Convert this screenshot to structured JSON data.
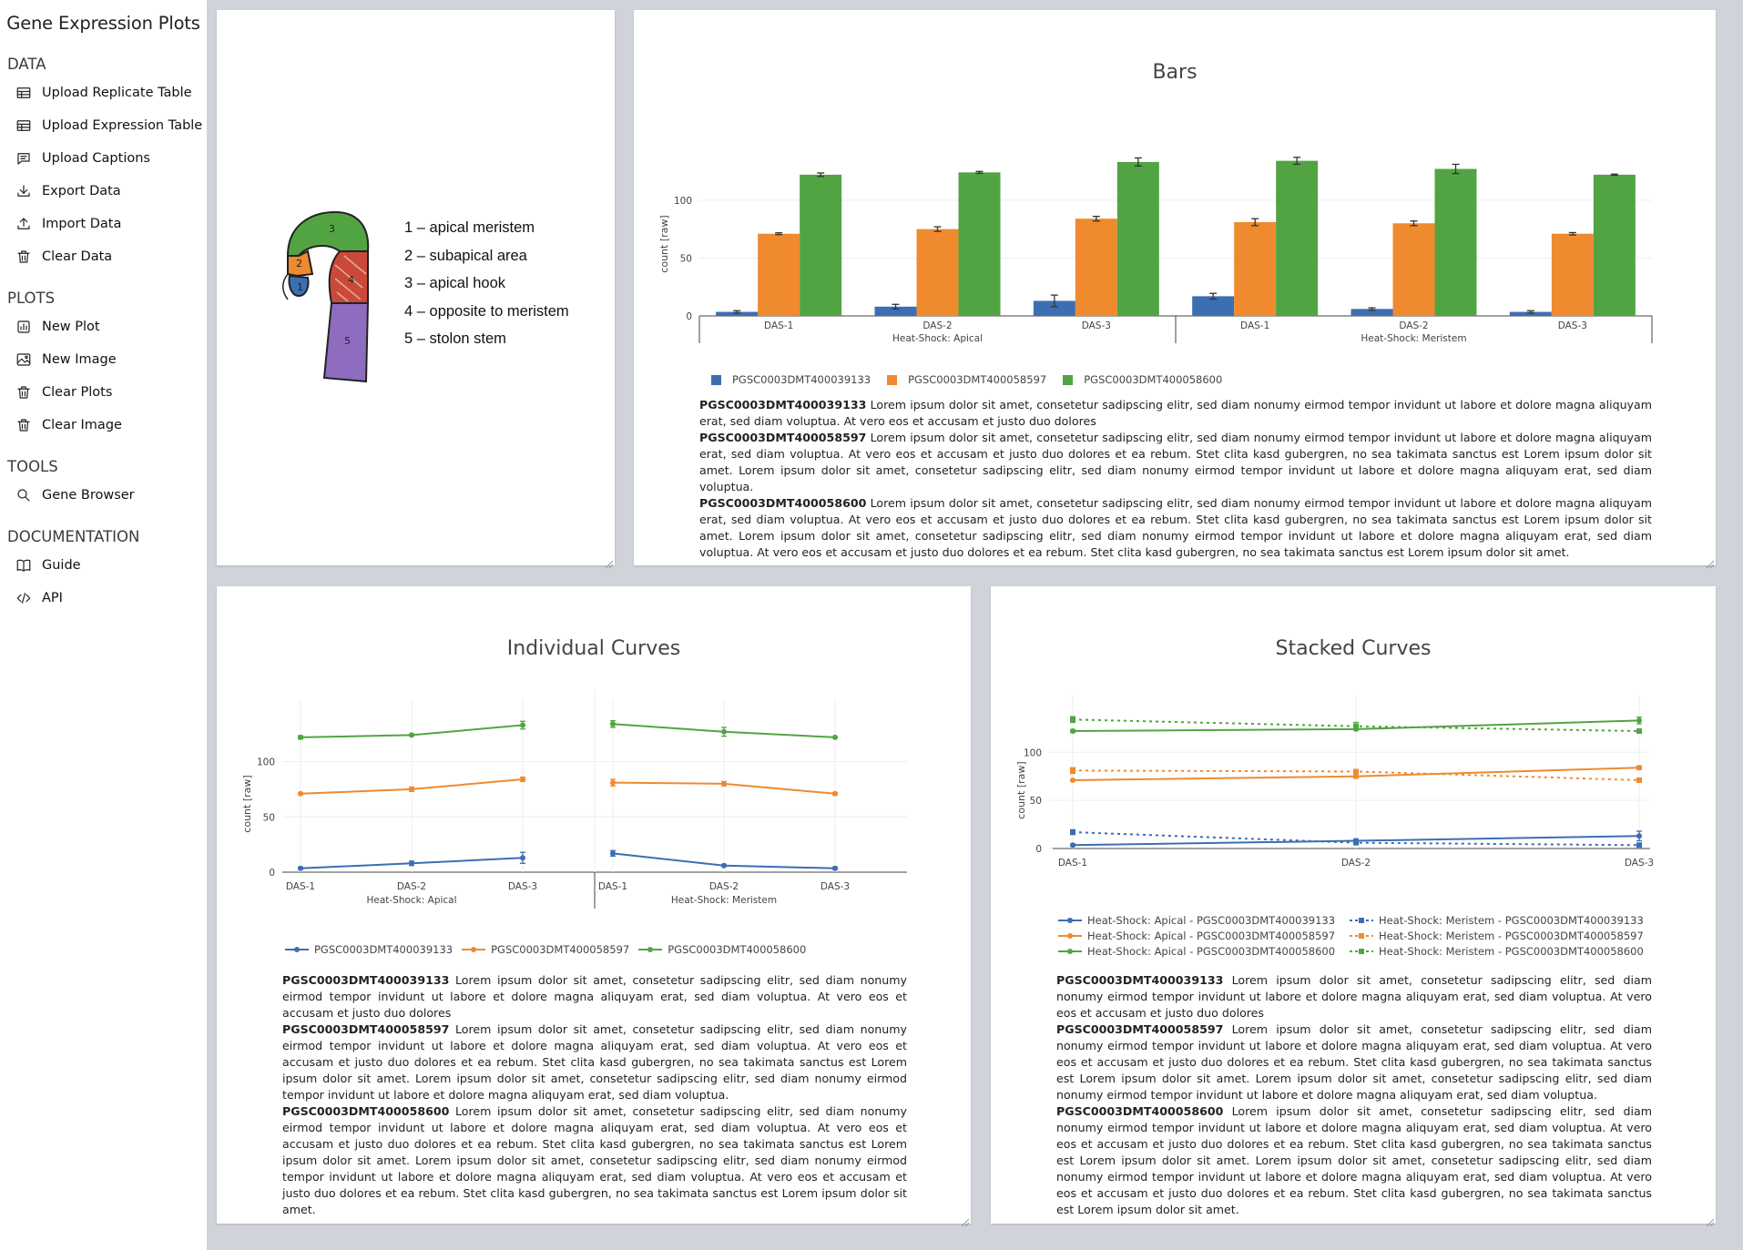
{
  "app": {
    "title": "Gene Expression Plots"
  },
  "sidebar": {
    "sections": [
      {
        "title": "DATA",
        "items": [
          {
            "label": "Upload Replicate Table",
            "icon": "table-icon"
          },
          {
            "label": "Upload Expression Table",
            "icon": "table-icon"
          },
          {
            "label": "Upload Captions",
            "icon": "comment-icon"
          },
          {
            "label": "Export Data",
            "icon": "download-icon"
          },
          {
            "label": "Import Data",
            "icon": "upload-icon"
          },
          {
            "label": "Clear Data",
            "icon": "trash-icon"
          }
        ]
      },
      {
        "title": "PLOTS",
        "items": [
          {
            "label": "New Plot",
            "icon": "bar-chart-icon"
          },
          {
            "label": "New Image",
            "icon": "image-icon"
          },
          {
            "label": "Clear Plots",
            "icon": "trash-icon"
          },
          {
            "label": "Clear Image",
            "icon": "trash-icon"
          }
        ]
      },
      {
        "title": "TOOLS",
        "items": [
          {
            "label": "Gene Browser",
            "icon": "search-icon"
          }
        ]
      },
      {
        "title": "DOCUMENTATION",
        "items": [
          {
            "label": "Guide",
            "icon": "book-icon"
          },
          {
            "label": "API",
            "icon": "code-icon"
          }
        ]
      }
    ]
  },
  "image_panel": {
    "regions": [
      "1 – apical meristem",
      "2 – subapical area",
      "3 – apical hook",
      "4 – opposite to meristem",
      "5 – stolon stem"
    ],
    "region_numbers": [
      "1",
      "2",
      "3",
      "4",
      "5"
    ]
  },
  "colors": {
    "blue": "#3c6eb4",
    "orange": "#ef8a2f",
    "green": "#52a443"
  },
  "genes": [
    "PGSC0003DMT400039133",
    "PGSC0003DMT400058597",
    "PGSC0003DMT400058600"
  ],
  "captions": [
    {
      "gene": "PGSC0003DMT400039133",
      "text": "Lorem ipsum dolor sit amet, consetetur sadipscing elitr, sed diam nonumy eirmod tempor invidunt ut labore et dolore magna aliquyam erat, sed diam voluptua. At vero eos et accusam et justo duo dolores"
    },
    {
      "gene": "PGSC0003DMT400058597",
      "text": "Lorem ipsum dolor sit amet, consetetur sadipscing elitr, sed diam nonumy eirmod tempor invidunt ut labore et dolore magna aliquyam erat, sed diam voluptua. At vero eos et accusam et justo duo dolores et ea rebum. Stet clita kasd gubergren, no sea takimata sanctus est Lorem ipsum dolor sit amet. Lorem ipsum dolor sit amet, consetetur sadipscing elitr, sed diam nonumy eirmod tempor invidunt ut labore et dolore magna aliquyam erat, sed diam voluptua."
    },
    {
      "gene": "PGSC0003DMT400058600",
      "text": "Lorem ipsum dolor sit amet, consetetur sadipscing elitr, sed diam nonumy eirmod tempor invidunt ut labore et dolore magna aliquyam erat, sed diam voluptua. At vero eos et accusam et justo duo dolores et ea rebum. Stet clita kasd gubergren, no sea takimata sanctus est Lorem ipsum dolor sit amet. Lorem ipsum dolor sit amet, consetetur sadipscing elitr, sed diam nonumy eirmod tempor invidunt ut labore et dolore magna aliquyam erat, sed diam voluptua. At vero eos et accusam et justo duo dolores et ea rebum. Stet clita kasd gubergren, no sea takimata sanctus est Lorem ipsum dolor sit amet."
    }
  ],
  "chart_data": [
    {
      "type": "bar",
      "title": "Bars",
      "ylabel": "count [raw]",
      "ylim": [
        0,
        140
      ],
      "yticks": [
        0,
        50,
        100
      ],
      "groups": [
        {
          "name": "Heat-Shock: Apical",
          "categories": [
            "DAS-1",
            "DAS-2",
            "DAS-3"
          ]
        },
        {
          "name": "Heat-Shock: Meristem",
          "categories": [
            "DAS-1",
            "DAS-2",
            "DAS-3"
          ]
        }
      ],
      "series": [
        {
          "name": "PGSC0003DMT400039133",
          "values": [
            3.5,
            8,
            13,
            17,
            6,
            3.5
          ],
          "errors": [
            1,
            2,
            5,
            2.5,
            1,
            1
          ]
        },
        {
          "name": "PGSC0003DMT400058597",
          "values": [
            71,
            75,
            84,
            81,
            80,
            71
          ],
          "errors": [
            0.8,
            2,
            2,
            3,
            2,
            1
          ]
        },
        {
          "name": "PGSC0003DMT400058600",
          "values": [
            122,
            124,
            133,
            134,
            127,
            122
          ],
          "errors": [
            1.5,
            0.8,
            3.5,
            3,
            4,
            0.5
          ]
        }
      ],
      "legend": "bottom"
    },
    {
      "type": "line",
      "title": "Individual Curves",
      "ylabel": "count [raw]",
      "ylim": [
        0,
        140
      ],
      "yticks": [
        0,
        50,
        100
      ],
      "groups": [
        {
          "name": "Heat-Shock: Apical",
          "categories": [
            "DAS-1",
            "DAS-2",
            "DAS-3"
          ]
        },
        {
          "name": "Heat-Shock: Meristem",
          "categories": [
            "DAS-1",
            "DAS-2",
            "DAS-3"
          ]
        }
      ],
      "series": [
        {
          "name": "PGSC0003DMT400039133",
          "values": [
            3.5,
            8,
            13,
            17,
            6,
            3.5
          ],
          "errors": [
            1,
            2,
            5,
            2.5,
            1,
            1
          ]
        },
        {
          "name": "PGSC0003DMT400058597",
          "values": [
            71,
            75,
            84,
            81,
            80,
            71
          ],
          "errors": [
            0.8,
            2,
            2,
            3,
            2,
            1
          ]
        },
        {
          "name": "PGSC0003DMT400058600",
          "values": [
            122,
            124,
            133,
            134,
            127,
            122
          ],
          "errors": [
            1.5,
            0.8,
            3.5,
            3,
            4,
            0.5
          ]
        }
      ],
      "grid": true,
      "legend": "bottom"
    },
    {
      "type": "line",
      "title": "Stacked Curves",
      "ylabel": "count [raw]",
      "ylim": [
        0,
        140
      ],
      "yticks": [
        0,
        50,
        100
      ],
      "categories": [
        "DAS-1",
        "DAS-2",
        "DAS-3"
      ],
      "series": [
        {
          "name": "Heat-Shock: Apical - PGSC0003DMT400039133",
          "values": [
            3.5,
            8,
            13
          ],
          "errors": [
            1,
            2,
            5
          ],
          "dash": false
        },
        {
          "name": "Heat-Shock: Apical - PGSC0003DMT400058597",
          "values": [
            71,
            75,
            84
          ],
          "errors": [
            0.8,
            2,
            2
          ],
          "dash": false
        },
        {
          "name": "Heat-Shock: Apical - PGSC0003DMT400058600",
          "values": [
            122,
            124,
            133
          ],
          "errors": [
            1.5,
            0.8,
            3.5
          ],
          "dash": false
        },
        {
          "name": "Heat-Shock: Meristem - PGSC0003DMT400039133",
          "values": [
            17,
            6,
            3.5
          ],
          "errors": [
            2.5,
            1,
            1
          ],
          "dash": true
        },
        {
          "name": "Heat-Shock: Meristem - PGSC0003DMT400058597",
          "values": [
            81,
            80,
            71
          ],
          "errors": [
            3,
            2,
            1
          ],
          "dash": true
        },
        {
          "name": "Heat-Shock: Meristem - PGSC0003DMT400058600",
          "values": [
            134,
            127,
            122
          ],
          "errors": [
            3,
            4,
            0.5
          ],
          "dash": true
        }
      ],
      "grid": true,
      "legend": "bottom"
    }
  ]
}
